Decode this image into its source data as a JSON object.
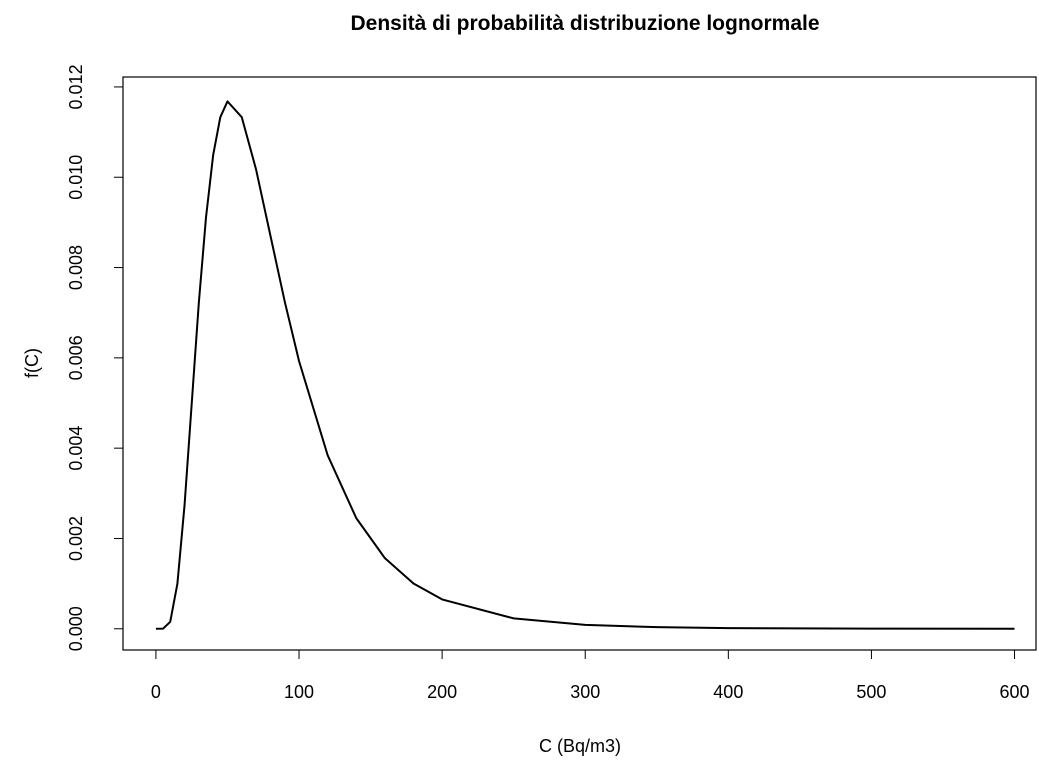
{
  "chart_data": {
    "type": "line",
    "title": "Densità di probabilità distribuzione lognormale",
    "x_label": "C (Bq/m3)",
    "y_label": "f(C)",
    "x": [
      0,
      5,
      10,
      15,
      20,
      25,
      30,
      35,
      40,
      45,
      50,
      60,
      70,
      80,
      90,
      100,
      120,
      140,
      160,
      180,
      200,
      250,
      300,
      350,
      400,
      500,
      600
    ],
    "series": [
      {
        "color": "#000000",
        "values": [
          0,
          2e-06,
          0.000154,
          0.000995,
          0.002735,
          0.00498,
          0.007224,
          0.00911,
          0.01049,
          0.01133,
          0.01168,
          0.01133,
          0.01017,
          0.00871,
          0.00725,
          0.00593,
          0.003845,
          0.002451,
          0.001564,
          0.001002,
          0.00065,
          0.00023,
          8.74e-05,
          3.56e-05,
          1.54e-05,
          3.3e-06,
          8.5e-07
        ]
      }
    ],
    "xlim": [
      -23,
      615
    ],
    "ylim": [
      -0.00047,
      0.01222
    ],
    "xticks": [
      0,
      100,
      200,
      300,
      400,
      500,
      600
    ],
    "yticks": [
      {
        "value": 0,
        "label": "0.000"
      },
      {
        "value": 0.002,
        "label": "0.002"
      },
      {
        "value": 0.004,
        "label": "0.004"
      },
      {
        "value": 0.006,
        "label": "0.006"
      },
      {
        "value": 0.008,
        "label": "0.008"
      },
      {
        "value": 0.01,
        "label": "0.010"
      },
      {
        "value": 0.012,
        "label": "0.012"
      }
    ],
    "grid": false
  }
}
